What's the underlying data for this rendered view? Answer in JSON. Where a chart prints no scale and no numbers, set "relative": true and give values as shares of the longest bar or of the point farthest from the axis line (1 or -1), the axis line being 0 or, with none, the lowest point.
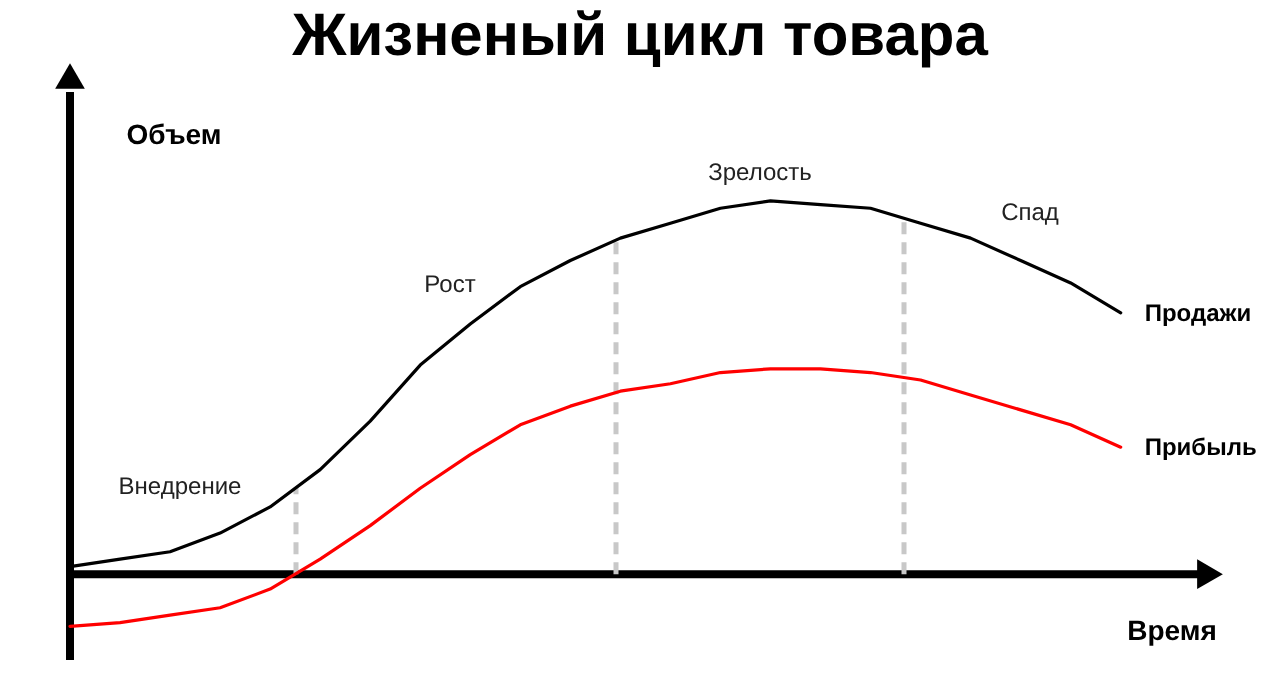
{
  "chart_data": {
    "type": "line",
    "title": "Жизненый цикл товара",
    "xlabel": "Время",
    "ylabel": "Объем",
    "relative": true,
    "legend": false,
    "line_style": "solid",
    "marker": "none",
    "categories": [
      null,
      null,
      null,
      null,
      null,
      null,
      null,
      null,
      null,
      null,
      null,
      null,
      null,
      null,
      null,
      null,
      null,
      null,
      null,
      null,
      null,
      null
    ],
    "series": [
      {
        "name": "Продажи",
        "color": "#000000",
        "values": [
          0.02,
          0.04,
          0.06,
          0.11,
          0.18,
          0.28,
          0.41,
          0.56,
          0.67,
          0.77,
          0.84,
          0.9,
          0.94,
          0.98,
          1.0,
          0.99,
          0.98,
          0.94,
          0.9,
          0.84,
          0.78,
          0.7
        ]
      },
      {
        "name": "Прибыль",
        "color": "#ff0000",
        "values": [
          -0.14,
          -0.13,
          -0.11,
          -0.09,
          -0.04,
          0.04,
          0.13,
          0.23,
          0.32,
          0.4,
          0.45,
          0.49,
          0.51,
          0.54,
          0.55,
          0.55,
          0.54,
          0.52,
          0.48,
          0.44,
          0.4,
          0.34
        ]
      }
    ],
    "annotations": [
      "Внедрение",
      "Рост",
      "Зрелость",
      "Спад"
    ]
  }
}
